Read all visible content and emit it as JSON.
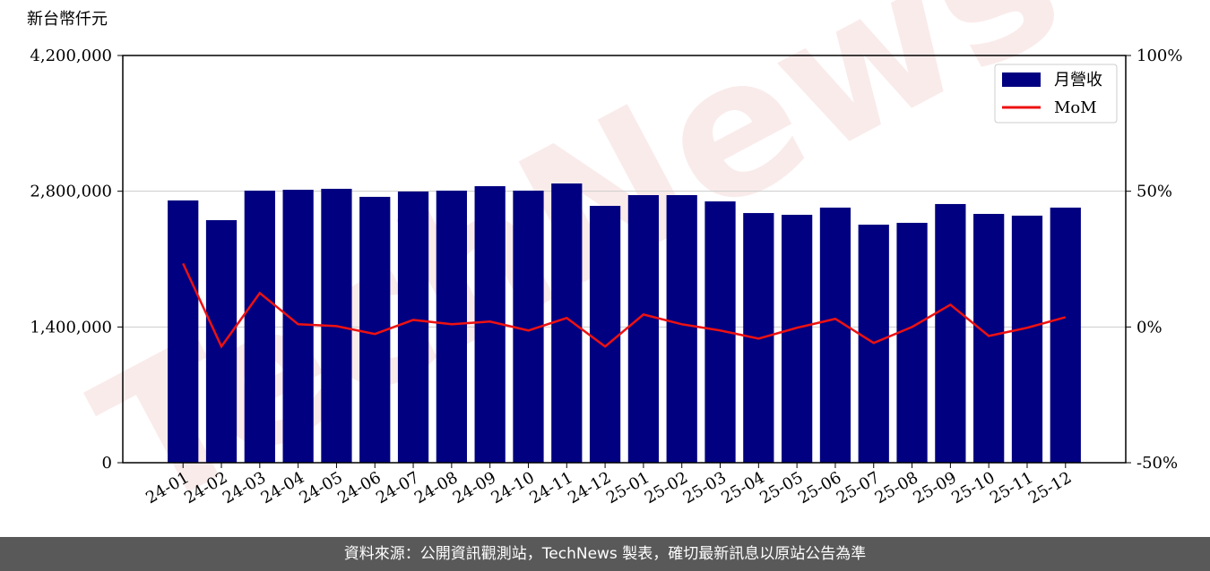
{
  "chart_data": {
    "type": "bar_line",
    "ylabel": "新台幣仟元",
    "watermark": "TechNews",
    "categories": [
      "24-01",
      "24-02",
      "24-03",
      "24-04",
      "24-05",
      "24-06",
      "24-07",
      "24-08",
      "24-09",
      "24-10",
      "24-11",
      "24-12",
      "25-01",
      "25-02",
      "25-03",
      "25-04",
      "25-05",
      "25-06",
      "25-07",
      "25-08",
      "25-09",
      "25-10",
      "25-11",
      "25-12"
    ],
    "series": [
      {
        "name": "月營收",
        "type": "bar",
        "color": "#000080",
        "values": [
          2705000,
          2502000,
          2806000,
          2815000,
          2825000,
          2742000,
          2797000,
          2806000,
          2852000,
          2806000,
          2880000,
          2649000,
          2760000,
          2760000,
          2695000,
          2575000,
          2557000,
          2631000,
          2455000,
          2474000,
          2668000,
          2566000,
          2548000,
          2631000
        ]
      },
      {
        "name": "MoM",
        "type": "line",
        "axis": "y2",
        "color": "#ee1111",
        "values": [
          23.4,
          -7.2,
          12.5,
          1.0,
          0.3,
          -2.6,
          2.6,
          1.0,
          2.0,
          -1.3,
          3.3,
          -7.2,
          4.6,
          1.0,
          -1.3,
          -4.3,
          -0.3,
          3.0,
          -5.9,
          0,
          8.2,
          -3.3,
          -0.3,
          3.6
        ]
      }
    ],
    "ylim": [
      0,
      4200000
    ],
    "yticks": [
      {
        "value": 0,
        "label": "0"
      },
      {
        "value": 1400000,
        "label": "1,400,000"
      },
      {
        "value": 2800000,
        "label": "2,800,000"
      },
      {
        "value": 4200000,
        "label": "4,200,000"
      }
    ],
    "y2lim": [
      -50,
      100
    ],
    "y2ticks": [
      {
        "value": -50,
        "label": "-50%"
      },
      {
        "value": 0,
        "label": "0%"
      },
      {
        "value": 50,
        "label": "50%"
      },
      {
        "value": 100,
        "label": "100%"
      }
    ],
    "grid": true,
    "legend": "upper right",
    "footer": "資料來源：公開資訊觀測站，TechNews 製表，確切最新訊息以原站公告為準"
  }
}
